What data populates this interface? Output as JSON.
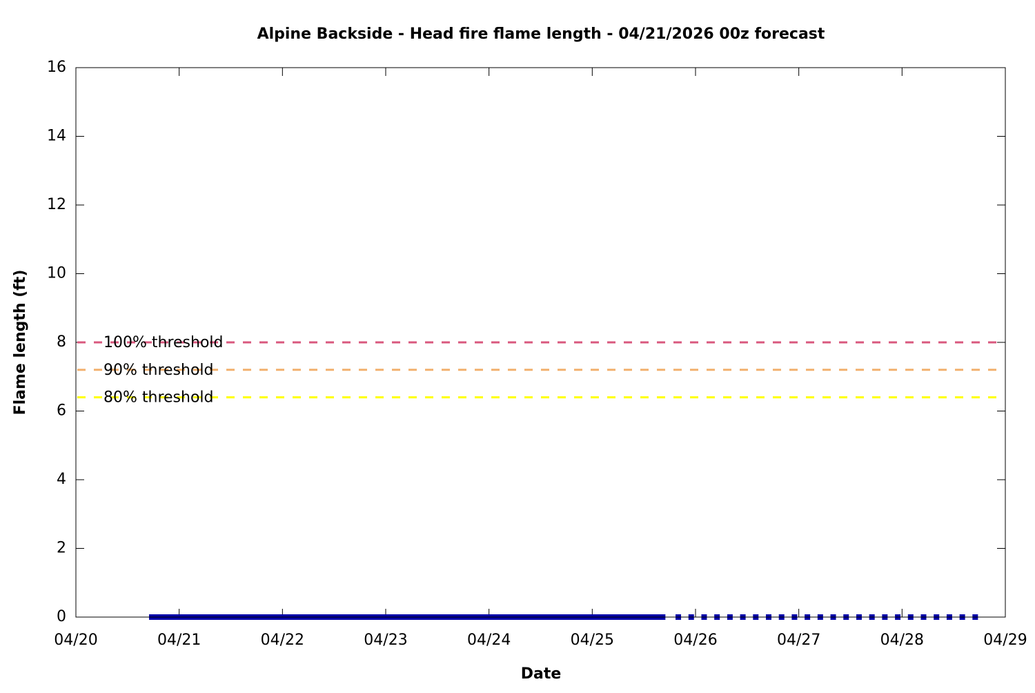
{
  "chart_data": {
    "type": "line",
    "title": "Alpine Backside - Head fire flame length - 04/21/2026 00z forecast",
    "xlabel": "Date",
    "ylabel": "Flame length (ft)",
    "xlim": [
      0,
      216
    ],
    "xticks": [
      {
        "value": 0,
        "label": "04/20"
      },
      {
        "value": 24,
        "label": "04/21"
      },
      {
        "value": 48,
        "label": "04/22"
      },
      {
        "value": 72,
        "label": "04/23"
      },
      {
        "value": 96,
        "label": "04/24"
      },
      {
        "value": 120,
        "label": "04/25"
      },
      {
        "value": 144,
        "label": "04/26"
      },
      {
        "value": 168,
        "label": "04/27"
      },
      {
        "value": 192,
        "label": "04/28"
      },
      {
        "value": 216,
        "label": "04/29"
      }
    ],
    "ylim": [
      0,
      16
    ],
    "yticks": [
      0,
      2,
      4,
      6,
      8,
      10,
      12,
      14,
      16
    ],
    "thresholds": [
      {
        "name": "100% threshold",
        "value": 8,
        "color": "#d9587e"
      },
      {
        "name": "90% threshold",
        "value": 7.2,
        "color": "#f2b06e"
      },
      {
        "name": "80% threshold",
        "value": 6.4,
        "color": "#ffff00"
      }
    ],
    "series": [
      {
        "style": "line",
        "color": "#0000a8",
        "x": [
          17,
          18,
          19,
          20,
          21,
          22,
          23,
          24,
          25,
          26,
          27,
          28,
          29,
          30,
          31,
          32,
          33,
          34,
          35,
          36,
          37,
          38,
          39,
          40,
          41,
          42,
          43,
          44,
          45,
          46,
          47,
          48,
          49,
          50,
          51,
          52,
          53,
          54,
          55,
          56,
          57,
          58,
          59,
          60,
          61,
          62,
          63,
          64,
          65,
          66,
          67,
          68,
          69,
          70,
          71,
          72,
          73,
          74,
          75,
          76,
          77,
          78,
          79,
          80,
          81,
          82,
          83,
          84,
          85,
          86,
          87,
          88,
          89,
          90,
          91,
          92,
          93,
          94,
          95,
          96,
          97,
          98,
          99,
          100,
          101,
          102,
          103,
          104,
          105,
          106,
          107,
          108,
          109,
          110,
          111,
          112,
          113,
          114,
          115,
          116,
          117,
          118,
          119,
          120,
          121,
          122,
          123,
          124,
          125,
          126,
          127,
          128,
          129,
          130,
          131,
          132,
          133,
          134,
          135,
          136,
          137
        ],
        "values": [
          0,
          0,
          0,
          0,
          0,
          0,
          0,
          0,
          0,
          0,
          0,
          0,
          0,
          0,
          0,
          0,
          0,
          0,
          0,
          0,
          0,
          0,
          0,
          0,
          0,
          0,
          0,
          0,
          0,
          0,
          0,
          0,
          0,
          0,
          0,
          0,
          0,
          0,
          0,
          0,
          0,
          0,
          0,
          0,
          0,
          0,
          0,
          0,
          0,
          0,
          0,
          0,
          0,
          0,
          0,
          0,
          0,
          0,
          0,
          0,
          0,
          0,
          0,
          0,
          0,
          0,
          0,
          0,
          0,
          0,
          0,
          0,
          0,
          0,
          0,
          0,
          0,
          0,
          0,
          0,
          0,
          0,
          0,
          0,
          0,
          0,
          0,
          0,
          0,
          0,
          0,
          0,
          0,
          0,
          0,
          0,
          0,
          0,
          0,
          0,
          0,
          0,
          0,
          0,
          0,
          0,
          0,
          0,
          0,
          0,
          0,
          0,
          0,
          0,
          0,
          0,
          0,
          0,
          0,
          0,
          0
        ]
      },
      {
        "style": "points",
        "color": "#0000a8",
        "x": [
          140,
          143,
          146,
          149,
          152,
          155,
          158,
          161,
          164,
          167,
          170,
          173,
          176,
          179,
          182,
          185,
          188,
          191,
          194,
          197,
          200,
          203,
          206,
          209
        ],
        "values": [
          0,
          0,
          0,
          0,
          0,
          0,
          0,
          0,
          0,
          0,
          0,
          0,
          0,
          0,
          0,
          0,
          0,
          0,
          0,
          0,
          0,
          0,
          0,
          0
        ]
      }
    ]
  }
}
